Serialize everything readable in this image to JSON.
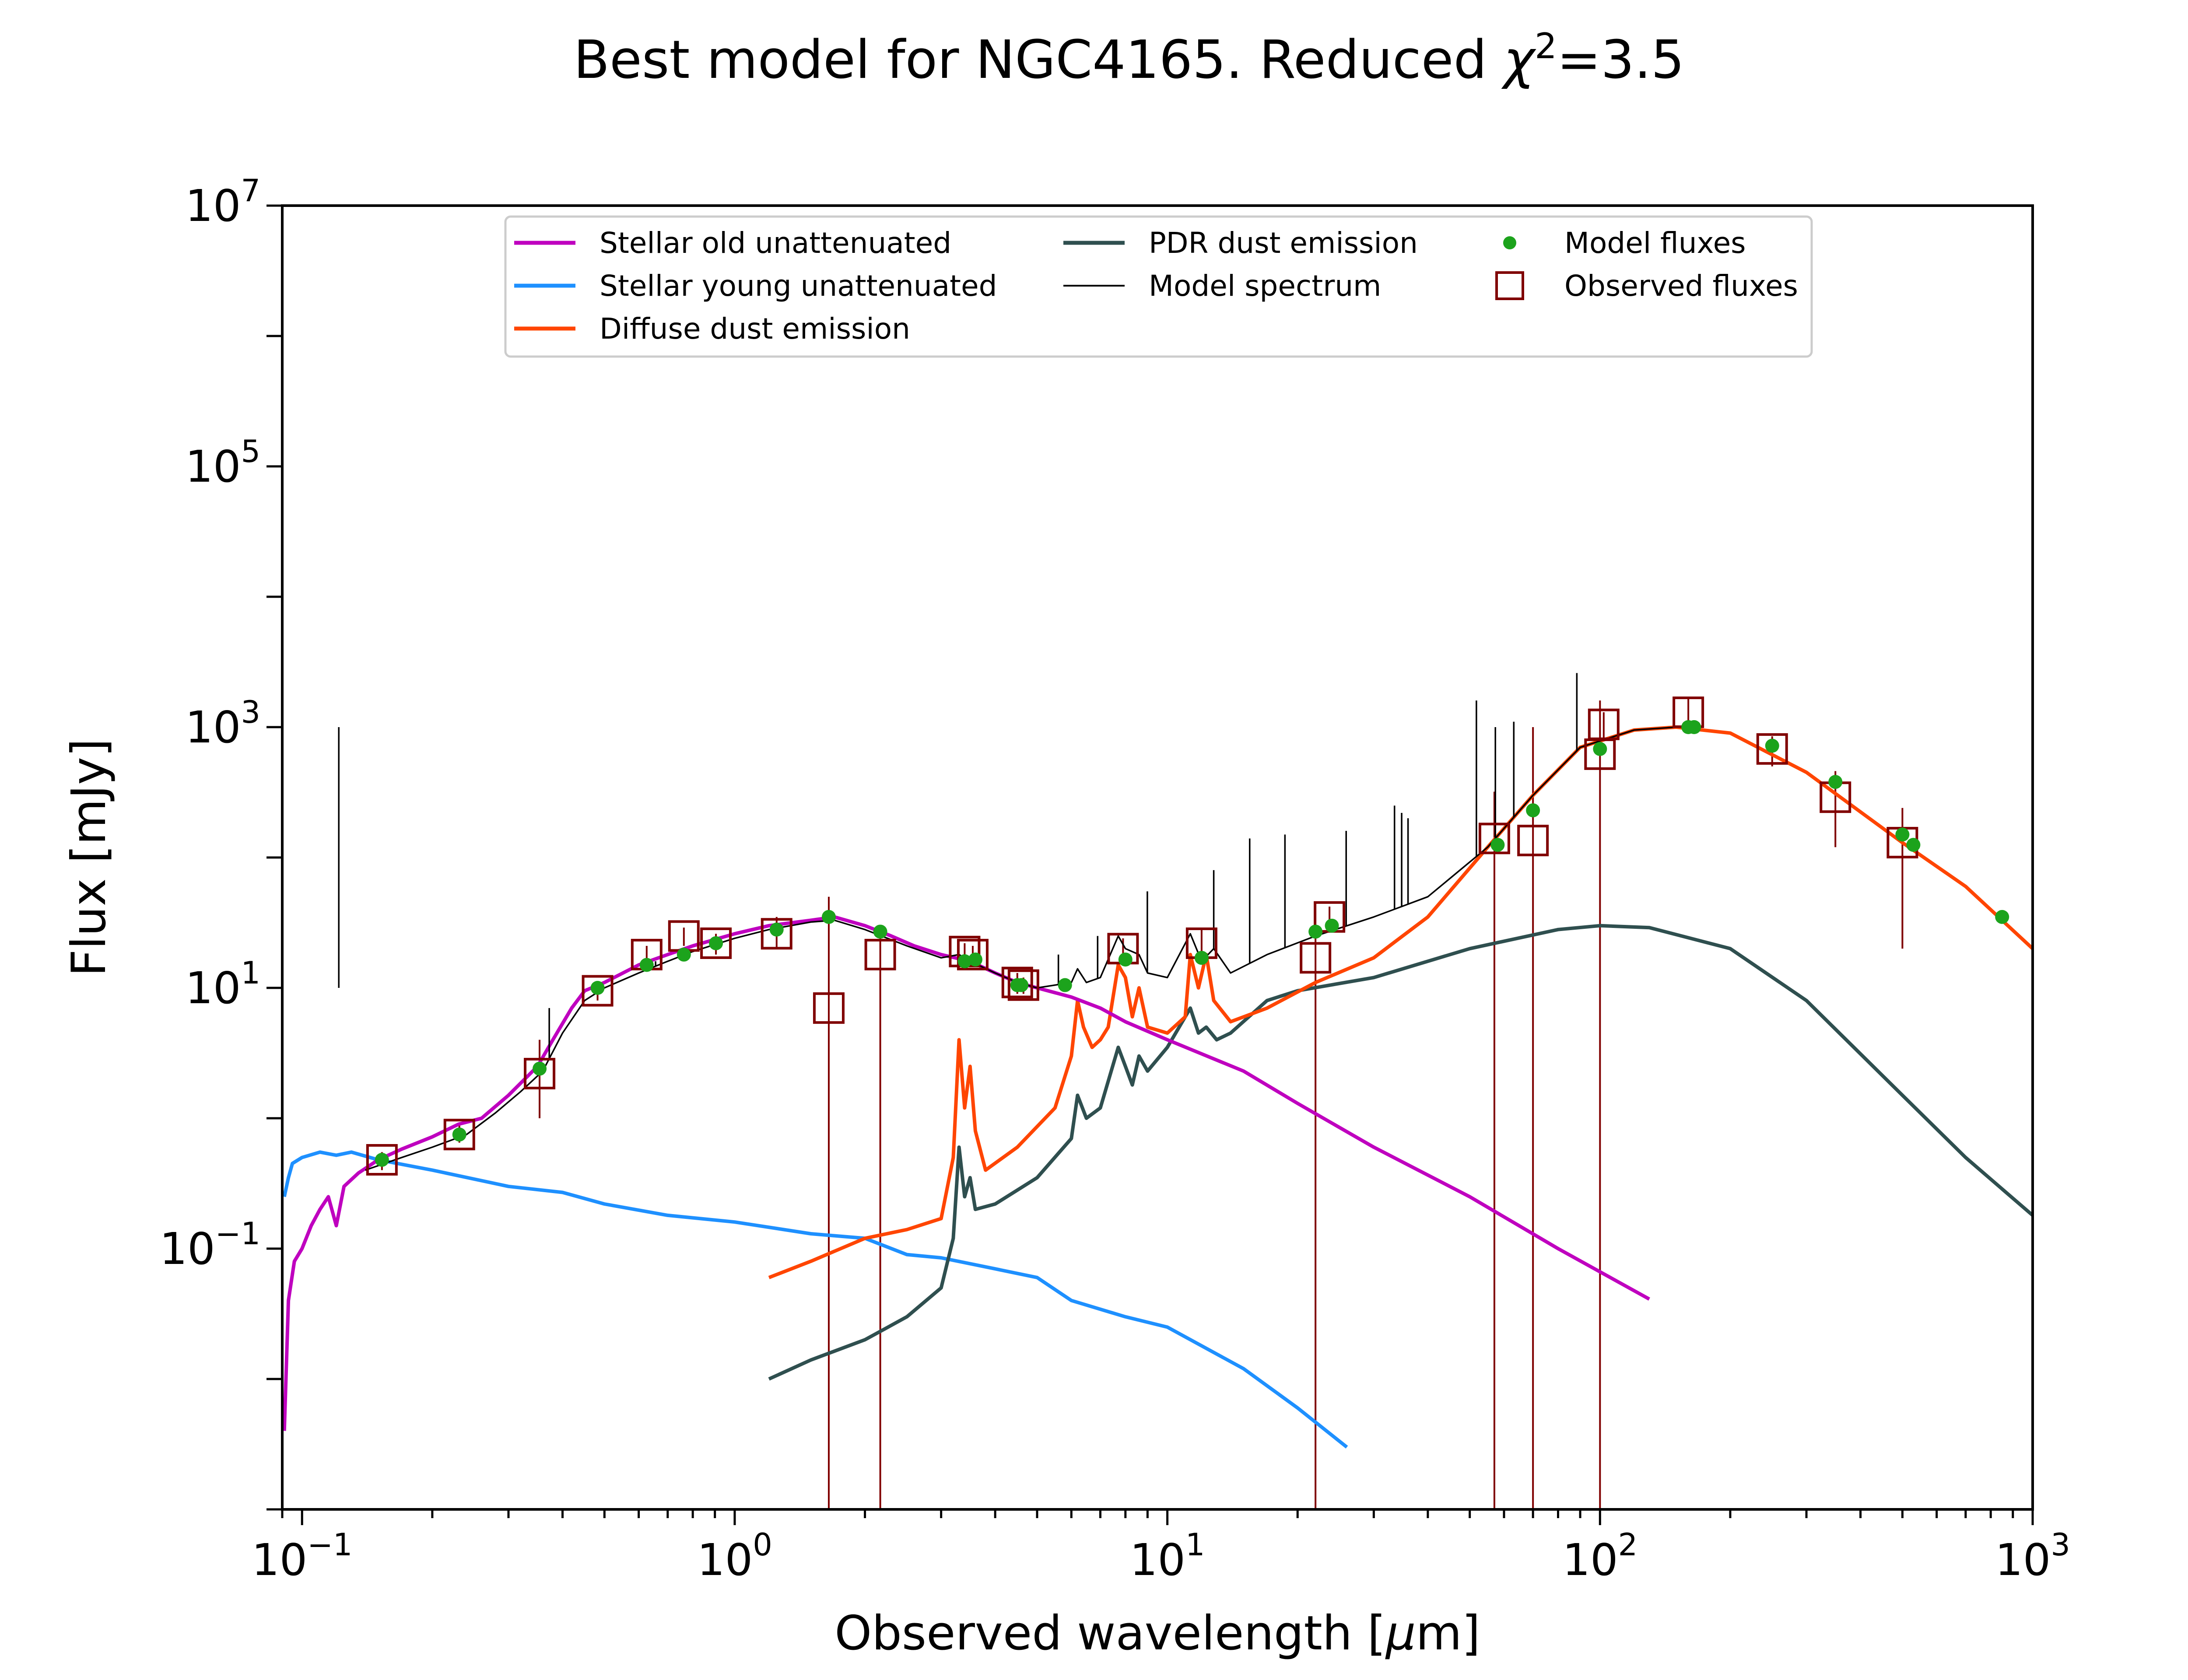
{
  "chart_data": {
    "type": "line",
    "title_prefix": "Best model for NGC4165. Reduced ",
    "title_chi": "χ",
    "title_chi_exp": "2",
    "title_suffix": "=3.5",
    "xlabel_prefix": "Observed wavelength [",
    "xlabel_mu": "μ",
    "xlabel_suffix": "m]",
    "ylabel": "Flux [mJy]",
    "xscale": "log",
    "yscale": "log",
    "xlim": [
      0.09,
      1000
    ],
    "ylim": [
      0.001,
      10000000
    ],
    "x_ticks": [
      {
        "base": "10",
        "exp": "−1",
        "value": 0.1
      },
      {
        "base": "10",
        "exp": "0",
        "value": 1
      },
      {
        "base": "10",
        "exp": "1",
        "value": 10
      },
      {
        "base": "10",
        "exp": "2",
        "value": 100
      },
      {
        "base": "10",
        "exp": "3",
        "value": 1000
      }
    ],
    "y_ticks": [
      {
        "base": "10",
        "exp": "−1",
        "value": 0.1
      },
      {
        "base": "10",
        "exp": "1",
        "value": 10
      },
      {
        "base": "10",
        "exp": "3",
        "value": 1000
      },
      {
        "base": "10",
        "exp": "5",
        "value": 100000
      },
      {
        "base": "10",
        "exp": "7",
        "value": 10000000
      }
    ],
    "legend_position": "top-center",
    "colors": {
      "stellar_old": "#bf00bf",
      "stellar_young": "#1e90ff",
      "diffuse_dust": "#ff4500",
      "pdr_dust": "#2f4f4f",
      "model_spectrum": "#000000",
      "model_fluxes": "#1ca31c",
      "observed": "#800000"
    },
    "series": [
      {
        "name": "Stellar old unattenuated",
        "key": "stellar_old",
        "points": [
          [
            0.091,
            0.004
          ],
          [
            0.093,
            0.04
          ],
          [
            0.096,
            0.08
          ],
          [
            0.1,
            0.1
          ],
          [
            0.105,
            0.15
          ],
          [
            0.11,
            0.2
          ],
          [
            0.115,
            0.25
          ],
          [
            0.12,
            0.15
          ],
          [
            0.125,
            0.3
          ],
          [
            0.135,
            0.38
          ],
          [
            0.15,
            0.48
          ],
          [
            0.17,
            0.58
          ],
          [
            0.2,
            0.72
          ],
          [
            0.23,
            0.9
          ],
          [
            0.26,
            1.0
          ],
          [
            0.3,
            1.5
          ],
          [
            0.35,
            2.5
          ],
          [
            0.38,
            4.0
          ],
          [
            0.42,
            7.0
          ],
          [
            0.45,
            9.5
          ],
          [
            0.5,
            11
          ],
          [
            0.6,
            15
          ],
          [
            0.7,
            18
          ],
          [
            0.8,
            21
          ],
          [
            1.0,
            26
          ],
          [
            1.2,
            30
          ],
          [
            1.5,
            33
          ],
          [
            1.7,
            35
          ],
          [
            2.0,
            30
          ],
          [
            2.3,
            25
          ],
          [
            2.6,
            21
          ],
          [
            3.0,
            18
          ],
          [
            3.5,
            16
          ],
          [
            4.0,
            13
          ],
          [
            4.5,
            11
          ],
          [
            5.0,
            10
          ],
          [
            6.0,
            8.5
          ],
          [
            7.0,
            7.0
          ],
          [
            8.0,
            5.5
          ],
          [
            10.0,
            4.0
          ],
          [
            15.0,
            2.3
          ],
          [
            20.0,
            1.3
          ],
          [
            30.0,
            0.6
          ],
          [
            50.0,
            0.25
          ],
          [
            80.0,
            0.1
          ],
          [
            130.0,
            0.041
          ]
        ]
      },
      {
        "name": "Stellar young unattenuated",
        "key": "stellar_young",
        "points": [
          [
            0.091,
            0.25
          ],
          [
            0.093,
            0.35
          ],
          [
            0.095,
            0.45
          ],
          [
            0.1,
            0.5
          ],
          [
            0.11,
            0.55
          ],
          [
            0.12,
            0.52
          ],
          [
            0.13,
            0.55
          ],
          [
            0.15,
            0.48
          ],
          [
            0.2,
            0.4
          ],
          [
            0.3,
            0.3
          ],
          [
            0.4,
            0.27
          ],
          [
            0.5,
            0.22
          ],
          [
            0.7,
            0.18
          ],
          [
            1.0,
            0.16
          ],
          [
            1.5,
            0.13
          ],
          [
            2.0,
            0.12
          ],
          [
            2.5,
            0.09
          ],
          [
            3.0,
            0.085
          ],
          [
            4.0,
            0.07
          ],
          [
            5.0,
            0.06
          ],
          [
            6.0,
            0.04
          ],
          [
            8.0,
            0.03
          ],
          [
            10.0,
            0.025
          ],
          [
            15.0,
            0.012
          ],
          [
            20.0,
            0.006
          ],
          [
            26.0,
            0.003
          ]
        ]
      },
      {
        "name": "Diffuse dust emission",
        "key": "diffuse_dust",
        "points": [
          [
            1.2,
            0.06
          ],
          [
            1.5,
            0.08
          ],
          [
            2.0,
            0.12
          ],
          [
            2.5,
            0.14
          ],
          [
            3.0,
            0.17
          ],
          [
            3.2,
            0.5
          ],
          [
            3.3,
            4.0
          ],
          [
            3.4,
            1.2
          ],
          [
            3.5,
            2.5
          ],
          [
            3.6,
            0.8
          ],
          [
            3.8,
            0.4
          ],
          [
            4.5,
            0.6
          ],
          [
            5.5,
            1.2
          ],
          [
            6.0,
            3.0
          ],
          [
            6.2,
            8.0
          ],
          [
            6.4,
            5.0
          ],
          [
            6.7,
            3.5
          ],
          [
            7.0,
            4.0
          ],
          [
            7.3,
            5.0
          ],
          [
            7.7,
            15.0
          ],
          [
            8.0,
            12.0
          ],
          [
            8.3,
            6.0
          ],
          [
            8.6,
            10.0
          ],
          [
            9.0,
            5.0
          ],
          [
            10.0,
            4.5
          ],
          [
            11.0,
            6.0
          ],
          [
            11.3,
            18.0
          ],
          [
            11.8,
            10.0
          ],
          [
            12.3,
            18.0
          ],
          [
            12.8,
            8.0
          ],
          [
            14.0,
            5.5
          ],
          [
            17.0,
            7.0
          ],
          [
            22.0,
            11.0
          ],
          [
            30.0,
            17.0
          ],
          [
            40.0,
            35.0
          ],
          [
            55.0,
            120.0
          ],
          [
            70.0,
            300.0
          ],
          [
            90.0,
            700.0
          ],
          [
            120.0,
            950.0
          ],
          [
            150.0,
            1000.0
          ],
          [
            200.0,
            900.0
          ],
          [
            300.0,
            450.0
          ],
          [
            500.0,
            130.0
          ],
          [
            700.0,
            60.0
          ],
          [
            1000.0,
            20.0
          ]
        ]
      },
      {
        "name": "PDR dust emission",
        "key": "pdr_dust",
        "points": [
          [
            1.2,
            0.01
          ],
          [
            1.5,
            0.014
          ],
          [
            2.0,
            0.02
          ],
          [
            2.5,
            0.03
          ],
          [
            3.0,
            0.05
          ],
          [
            3.2,
            0.12
          ],
          [
            3.3,
            0.6
          ],
          [
            3.4,
            0.25
          ],
          [
            3.5,
            0.35
          ],
          [
            3.6,
            0.2
          ],
          [
            4.0,
            0.22
          ],
          [
            5.0,
            0.35
          ],
          [
            6.0,
            0.7
          ],
          [
            6.2,
            1.5
          ],
          [
            6.5,
            1.0
          ],
          [
            7.0,
            1.2
          ],
          [
            7.7,
            3.5
          ],
          [
            8.0,
            2.5
          ],
          [
            8.3,
            1.8
          ],
          [
            8.6,
            3.0
          ],
          [
            9.0,
            2.3
          ],
          [
            10.0,
            3.5
          ],
          [
            11.3,
            7.0
          ],
          [
            11.8,
            4.5
          ],
          [
            12.3,
            5.0
          ],
          [
            13.0,
            4.0
          ],
          [
            14.0,
            4.5
          ],
          [
            17.0,
            8.0
          ],
          [
            20.0,
            9.5
          ],
          [
            30.0,
            12.0
          ],
          [
            50.0,
            20.0
          ],
          [
            80.0,
            28.0
          ],
          [
            100.0,
            30.0
          ],
          [
            130.0,
            29.0
          ],
          [
            200.0,
            20.0
          ],
          [
            300.0,
            8.0
          ],
          [
            500.0,
            1.5
          ],
          [
            700.0,
            0.5
          ],
          [
            1000.0,
            0.18
          ]
        ]
      },
      {
        "name": "Model spectrum",
        "key": "model_spectrum",
        "points": [
          [
            0.14,
            0.4
          ],
          [
            0.17,
            0.5
          ],
          [
            0.2,
            0.6
          ],
          [
            0.24,
            0.75
          ],
          [
            0.28,
            1.1
          ],
          [
            0.32,
            1.6
          ],
          [
            0.36,
            2.3
          ],
          [
            0.4,
            4.5
          ],
          [
            0.45,
            8.0
          ],
          [
            0.5,
            10.0
          ],
          [
            0.6,
            13.0
          ],
          [
            0.7,
            16.0
          ],
          [
            0.8,
            19.0
          ],
          [
            1.0,
            24.0
          ],
          [
            1.2,
            28.0
          ],
          [
            1.5,
            32.0
          ],
          [
            1.7,
            33.0
          ],
          [
            2.0,
            28.0
          ],
          [
            2.5,
            21.0
          ],
          [
            3.0,
            17.0
          ],
          [
            3.3,
            18.0
          ],
          [
            3.5,
            16.0
          ],
          [
            4.0,
            13.0
          ],
          [
            4.5,
            11.0
          ],
          [
            5.0,
            10.0
          ],
          [
            6.0,
            11.0
          ],
          [
            6.2,
            14.0
          ],
          [
            6.5,
            11.0
          ],
          [
            7.0,
            12.0
          ],
          [
            7.7,
            25.0
          ],
          [
            8.0,
            20.0
          ],
          [
            8.6,
            18.0
          ],
          [
            9.0,
            13.0
          ],
          [
            10.0,
            12.0
          ],
          [
            11.3,
            26.0
          ],
          [
            12.0,
            16.0
          ],
          [
            12.8,
            20.0
          ],
          [
            14.0,
            13.0
          ],
          [
            17.0,
            18.0
          ],
          [
            22.0,
            25.0
          ],
          [
            30.0,
            35.0
          ],
          [
            40.0,
            50.0
          ],
          [
            55.0,
            120.0
          ],
          [
            70.0,
            300.0
          ],
          [
            90.0,
            700.0
          ],
          [
            120.0,
            950.0
          ],
          [
            150.0,
            1000.0
          ]
        ]
      }
    ],
    "spectrum_emission_lines": [
      [
        0.1216,
        10.0
      ],
      [
        0.3727,
        7.0
      ],
      [
        0.6563,
        16.0
      ],
      [
        5.6,
        18.0
      ],
      [
        6.9,
        25.0
      ],
      [
        8.99,
        55.0
      ],
      [
        12.8,
        80.0
      ],
      [
        15.5,
        140.0
      ],
      [
        18.7,
        150.0
      ],
      [
        25.9,
        160.0
      ],
      [
        33.5,
        250.0
      ],
      [
        34.8,
        220.0
      ],
      [
        36.0,
        200.0
      ],
      [
        51.8,
        1600.0
      ],
      [
        57.3,
        1000.0
      ],
      [
        63.2,
        1100.0
      ],
      [
        88.4,
        2600.0
      ]
    ],
    "model_fluxes": [
      [
        0.153,
        0.48
      ],
      [
        0.231,
        0.75
      ],
      [
        0.354,
        2.4
      ],
      [
        0.482,
        10.0
      ],
      [
        0.626,
        15.0
      ],
      [
        0.763,
        18.0
      ],
      [
        0.905,
        22.0
      ],
      [
        1.25,
        28.0
      ],
      [
        1.65,
        35.0
      ],
      [
        2.17,
        27.0
      ],
      [
        3.4,
        16.0
      ],
      [
        3.6,
        16.5
      ],
      [
        4.5,
        10.5
      ],
      [
        4.6,
        10.5
      ],
      [
        5.8,
        10.5
      ],
      [
        8.0,
        16.5
      ],
      [
        12.0,
        17.0
      ],
      [
        22.0,
        27.0
      ],
      [
        24.0,
        30.0
      ],
      [
        58.0,
        125.0
      ],
      [
        70.0,
        230.0
      ],
      [
        100.0,
        680.0
      ],
      [
        160.0,
        1000.0
      ],
      [
        165.0,
        1000.0
      ],
      [
        250.0,
        720.0
      ],
      [
        350.0,
        380.0
      ],
      [
        500.0,
        150.0
      ],
      [
        530.0,
        125.0
      ],
      [
        850.0,
        35.0
      ]
    ],
    "observed_fluxes": [
      {
        "x": 0.153,
        "y": 0.48,
        "lo": 0.4,
        "hi": 0.55
      },
      {
        "x": 0.231,
        "y": 0.75,
        "lo": 0.65,
        "hi": 0.9
      },
      {
        "x": 0.354,
        "y": 2.2,
        "lo": 1.0,
        "hi": 4.0
      },
      {
        "x": 0.482,
        "y": 9.5,
        "lo": 8.0,
        "hi": 11.0
      },
      {
        "x": 0.626,
        "y": 18.0,
        "lo": 15.0,
        "hi": 21.0
      },
      {
        "x": 0.763,
        "y": 25.0,
        "lo": 21.0,
        "hi": 29.0
      },
      {
        "x": 0.905,
        "y": 22.0,
        "lo": 18.0,
        "hi": 26.0
      },
      {
        "x": 1.25,
        "y": 26.0,
        "lo": 20.0,
        "hi": 35.0
      },
      {
        "x": 1.65,
        "y": 7.0,
        "lo": 0.001,
        "hi": 50.0
      },
      {
        "x": 2.17,
        "y": 18.0,
        "lo": 0.001,
        "hi": 28.0
      },
      {
        "x": 3.4,
        "y": 19.0,
        "lo": 16.0,
        "hi": 22.0
      },
      {
        "x": 3.55,
        "y": 18.0,
        "lo": 15.0,
        "hi": 21.0
      },
      {
        "x": 4.5,
        "y": 11.0,
        "lo": 9.0,
        "hi": 13.0
      },
      {
        "x": 4.65,
        "y": 10.5,
        "lo": 9.0,
        "hi": 12.0
      },
      {
        "x": 7.9,
        "y": 20.0,
        "lo": 16.0,
        "hi": 24.0
      },
      {
        "x": 12.0,
        "y": 22.0,
        "lo": 17.0,
        "hi": 28.0
      },
      {
        "x": 22.0,
        "y": 17.0,
        "lo": 0.001,
        "hi": 30.0
      },
      {
        "x": 23.7,
        "y": 35.0,
        "lo": 28.0,
        "hi": 42.0
      },
      {
        "x": 57.0,
        "y": 140.0,
        "lo": 0.001,
        "hi": 320.0
      },
      {
        "x": 70.0,
        "y": 135.0,
        "lo": 0.001,
        "hi": 1000.0
      },
      {
        "x": 100.0,
        "y": 620.0,
        "lo": 0.001,
        "hi": 1600.0
      },
      {
        "x": 102.0,
        "y": 1050.0,
        "lo": 800.0,
        "hi": 1300.0
      },
      {
        "x": 160.0,
        "y": 1300.0,
        "lo": 900.0,
        "hi": 1700.0
      },
      {
        "x": 250.0,
        "y": 680.0,
        "lo": 500.0,
        "hi": 850.0
      },
      {
        "x": 350.0,
        "y": 290.0,
        "lo": 120.0,
        "hi": 460.0
      },
      {
        "x": 500.0,
        "y": 130.0,
        "lo": 20.0,
        "hi": 240.0
      }
    ],
    "legend": [
      {
        "label": "Stellar old unattenuated",
        "key": "stellar_old",
        "kind": "line"
      },
      {
        "label": "Stellar young unattenuated",
        "key": "stellar_young",
        "kind": "line"
      },
      {
        "label": "Diffuse dust emission",
        "key": "diffuse_dust",
        "kind": "line"
      },
      {
        "label": "PDR dust emission",
        "key": "pdr_dust",
        "kind": "line"
      },
      {
        "label": "Model spectrum",
        "key": "model_spectrum",
        "kind": "thinline"
      },
      {
        "label": "Model fluxes",
        "key": "model_fluxes",
        "kind": "dot"
      },
      {
        "label": "Observed fluxes",
        "key": "observed",
        "kind": "square"
      }
    ]
  }
}
